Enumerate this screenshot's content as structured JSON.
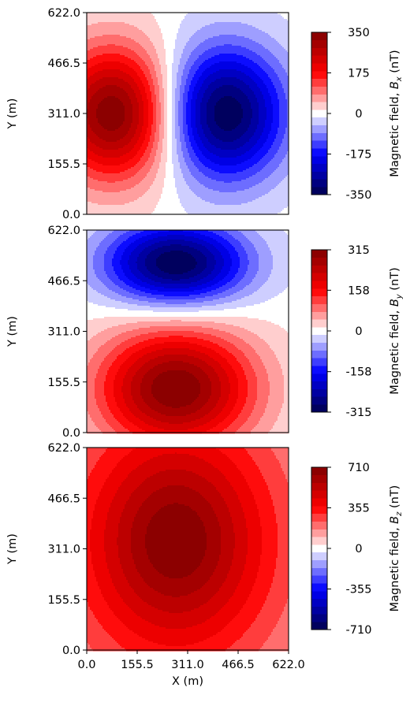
{
  "chart_data": [
    {
      "type": "heatmap",
      "title": "",
      "xlabel": "",
      "ylabel": "Y (m)",
      "xlim": [
        0,
        622
      ],
      "ylim": [
        0,
        622
      ],
      "xticks": [],
      "yticks": [
        "0.0",
        "155.5",
        "311.0",
        "466.5",
        "622.0"
      ],
      "colorbar": {
        "label_prefix": "Magnetic field, ",
        "symbol_main": "B",
        "symbol_sub": "x",
        "label_suffix": " (nT)",
        "ticks": [
          "350",
          "175",
          "0",
          "-175",
          "-350"
        ],
        "range": [
          -350,
          350
        ],
        "colormap": "seismic",
        "levels": 21
      },
      "field": {
        "lobes": [
          {
            "sign": 1,
            "x": 85,
            "y": 311,
            "peak": 350,
            "sx": 185,
            "sy": 205,
            "shape": "gauss"
          },
          {
            "sign": -1,
            "x": 425,
            "y": 311,
            "peak": 350,
            "sx": 185,
            "sy": 205,
            "shape": "gauss"
          }
        ]
      }
    },
    {
      "type": "heatmap",
      "title": "",
      "xlabel": "",
      "ylabel": "Y (m)",
      "xlim": [
        0,
        622
      ],
      "ylim": [
        0,
        622
      ],
      "xticks": [],
      "yticks": [
        "0.0",
        "155.5",
        "311.0",
        "466.5",
        "622.0"
      ],
      "colorbar": {
        "label_prefix": "Magnetic field, ",
        "symbol_main": "B",
        "symbol_sub": "y",
        "label_suffix": " (nT)",
        "ticks": [
          "315",
          "158",
          "0",
          "-158",
          "-315"
        ],
        "range": [
          -315,
          315
        ],
        "colormap": "seismic",
        "levels": 21
      },
      "field": {
        "lobes": [
          {
            "sign": -1,
            "x": 275,
            "y": 520,
            "peak": 315,
            "sx": 215,
            "sy": 125,
            "shape": "gauss"
          },
          {
            "sign": 1,
            "x": 275,
            "y": 135,
            "peak": 315,
            "sx": 240,
            "sy": 185,
            "shape": "gauss"
          }
        ]
      }
    },
    {
      "type": "heatmap",
      "title": "",
      "xlabel": "X (m)",
      "ylabel": "Y (m)",
      "xlim": [
        0,
        622
      ],
      "ylim": [
        0,
        622
      ],
      "xticks": [
        "0.0",
        "155.5",
        "311.0",
        "466.5",
        "622.0"
      ],
      "yticks": [
        "0.0",
        "155.5",
        "311.0",
        "466.5",
        "622.0"
      ],
      "colorbar": {
        "label_prefix": "Magnetic field, ",
        "symbol_main": "B",
        "symbol_sub": "z",
        "label_suffix": " (nT)",
        "ticks": [
          "710",
          "355",
          "0",
          "-355",
          "-710"
        ],
        "range": [
          -710,
          710
        ],
        "colormap": "seismic",
        "levels": 21
      },
      "field": {
        "lobes": [
          {
            "sign": 1,
            "x": 275,
            "y": 335,
            "peak": 710,
            "sx": 360,
            "sy": 440,
            "shape": "lorentz"
          }
        ]
      }
    }
  ]
}
